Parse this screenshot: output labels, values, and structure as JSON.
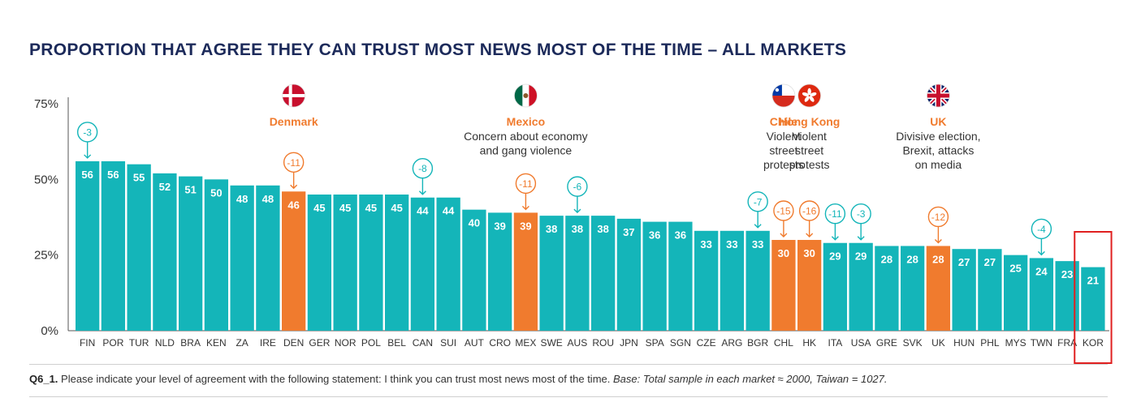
{
  "title": "PROPORTION THAT AGREE THEY CAN TRUST MOST NEWS MOST OF THE TIME – ALL MARKETS",
  "chart_data": {
    "type": "bar",
    "ylim": [
      0,
      75
    ],
    "yticks": [
      {
        "value": 0,
        "label": "0%"
      },
      {
        "value": 25,
        "label": "25%"
      },
      {
        "value": 50,
        "label": "50%"
      },
      {
        "value": 75,
        "label": "75%"
      }
    ],
    "categories": [
      "FIN",
      "POR",
      "TUR",
      "NLD",
      "BRA",
      "KEN",
      "ZA",
      "IRE",
      "DEN",
      "GER",
      "NOR",
      "POL",
      "BEL",
      "CAN",
      "SUI",
      "AUT",
      "CRO",
      "MEX",
      "SWE",
      "AUS",
      "ROU",
      "JPN",
      "SPA",
      "SGN",
      "CZE",
      "ARG",
      "BGR",
      "CHL",
      "HK",
      "ITA",
      "USA",
      "GRE",
      "SVK",
      "UK",
      "HUN",
      "PHL",
      "MYS",
      "TWN",
      "FRA",
      "KOR"
    ],
    "values": [
      56,
      56,
      55,
      52,
      51,
      50,
      48,
      48,
      46,
      45,
      45,
      45,
      45,
      44,
      44,
      40,
      39,
      39,
      38,
      38,
      38,
      37,
      36,
      36,
      33,
      33,
      33,
      30,
      30,
      29,
      29,
      28,
      28,
      28,
      27,
      27,
      25,
      24,
      23,
      21
    ],
    "highlighted": [
      "DEN",
      "MEX",
      "CHL",
      "HK",
      "UK"
    ],
    "changes": [
      {
        "category": "FIN",
        "label": "-3"
      },
      {
        "category": "DEN",
        "label": "-11"
      },
      {
        "category": "CAN",
        "label": "-8"
      },
      {
        "category": "MEX",
        "label": "-11"
      },
      {
        "category": "AUS",
        "label": "-6"
      },
      {
        "category": "BGR",
        "label": "-7"
      },
      {
        "category": "CHL",
        "label": "-15"
      },
      {
        "category": "HK",
        "label": "-16"
      },
      {
        "category": "ITA",
        "label": "-11"
      },
      {
        "category": "USA",
        "label": "-3"
      },
      {
        "category": "UK",
        "label": "-12"
      },
      {
        "category": "TWN",
        "label": "-4"
      }
    ],
    "annotations": [
      {
        "category": "DEN",
        "flag": "denmark-flag",
        "name": "Denmark",
        "lines": []
      },
      {
        "category": "MEX",
        "flag": "mexico-flag",
        "name": "Mexico",
        "lines": [
          "Concern about economy",
          "and gang violence"
        ]
      },
      {
        "category": "CHL",
        "flag": "chile-flag",
        "name": "Chile",
        "lines": [
          "Violent",
          "street",
          "protests"
        ]
      },
      {
        "category": "HK",
        "flag": "hong-kong-flag",
        "name": "Hong Kong",
        "lines": [
          "Violent",
          "street",
          "protests"
        ]
      },
      {
        "category": "UK",
        "flag": "uk-flag",
        "name": "UK",
        "lines": [
          "Divisive election,",
          "Brexit, attacks",
          "on media"
        ]
      }
    ],
    "boxed": "KOR",
    "colors": {
      "bar": "#14b5b9",
      "highlight": "#f07b2e",
      "title": "#1c2a5a",
      "box": "#e02020"
    }
  },
  "footnote": {
    "code": "Q6_1.",
    "text": " Please indicate your level of agreement with the following statement: I think you can trust most news most of the time. ",
    "base": "Base: Total sample in each market ≈ 2000, Taiwan = 1027."
  }
}
